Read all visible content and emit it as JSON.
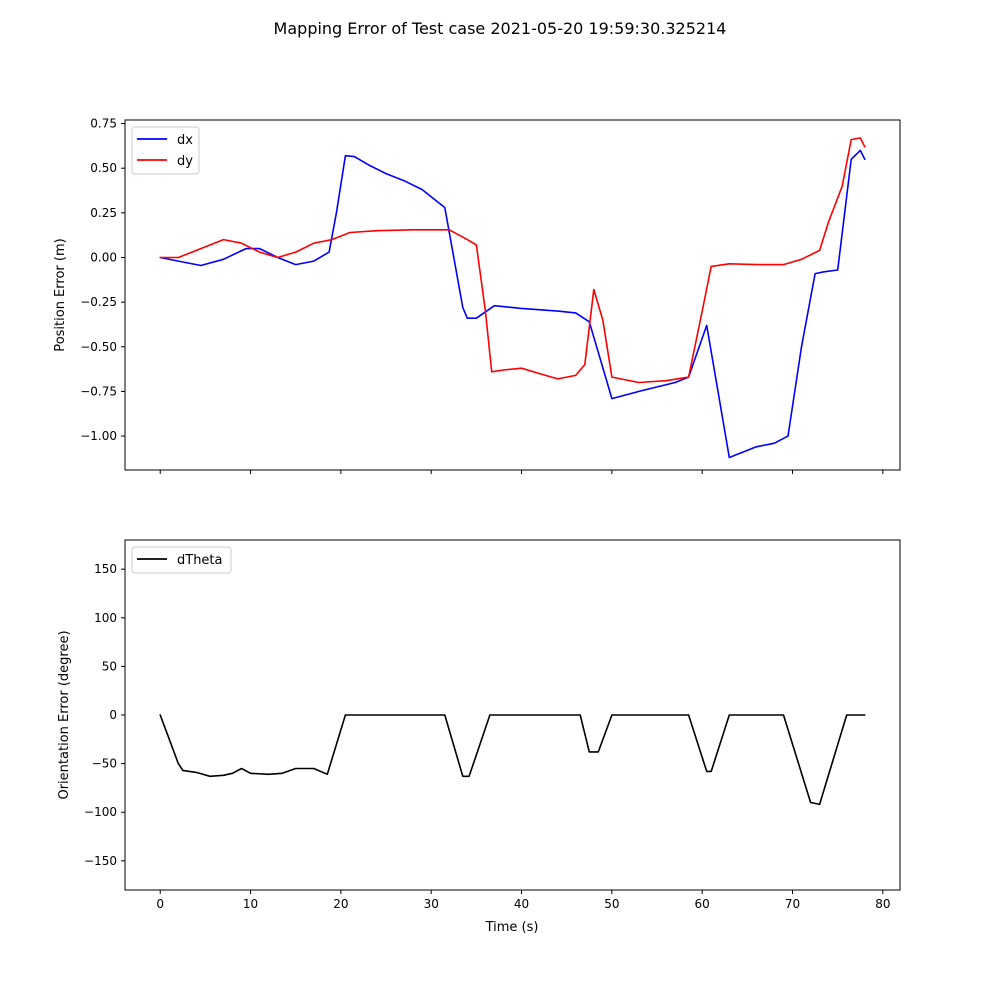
{
  "figure": {
    "title": "Mapping Error of Test case 2021-05-20 19:59:30.325214"
  },
  "chart_data": [
    {
      "type": "line",
      "xlabel": "",
      "ylabel": "Position Error (m)",
      "xlim": [
        -3.9,
        81.9
      ],
      "ylim": [
        -1.19,
        0.77
      ],
      "xticks": [
        0,
        10,
        20,
        30,
        40,
        50,
        60,
        70,
        80
      ],
      "xtick_labels_visible": false,
      "yticks": [
        -1.0,
        -0.75,
        -0.5,
        -0.25,
        0.0,
        0.25,
        0.5,
        0.75
      ],
      "ytick_labels": [
        "−1.00",
        "−0.75",
        "−0.50",
        "−0.25",
        "0.00",
        "0.25",
        "0.50",
        "0.75"
      ],
      "grid": false,
      "legend": "top-left",
      "series": [
        {
          "name": "dx",
          "color": "#0000ff",
          "points": [
            [
              0,
              0
            ],
            [
              2,
              -0.02
            ],
            [
              4.5,
              -0.045
            ],
            [
              7,
              -0.01
            ],
            [
              9.5,
              0.05
            ],
            [
              11,
              0.05
            ],
            [
              13,
              0.0
            ],
            [
              15,
              -0.04
            ],
            [
              17,
              -0.02
            ],
            [
              18.7,
              0.03
            ],
            [
              19.5,
              0.25
            ],
            [
              20.5,
              0.57
            ],
            [
              21.5,
              0.565
            ],
            [
              23,
              0.52
            ],
            [
              25,
              0.47
            ],
            [
              27,
              0.43
            ],
            [
              29,
              0.38
            ],
            [
              30.5,
              0.32
            ],
            [
              31.5,
              0.28
            ],
            [
              32.5,
              0.0
            ],
            [
              33.5,
              -0.28
            ],
            [
              34,
              -0.34
            ],
            [
              35,
              -0.34
            ],
            [
              37,
              -0.27
            ],
            [
              40,
              -0.285
            ],
            [
              44,
              -0.3
            ],
            [
              46,
              -0.31
            ],
            [
              47.5,
              -0.36
            ],
            [
              50,
              -0.79
            ],
            [
              53,
              -0.75
            ],
            [
              57,
              -0.7
            ],
            [
              58.5,
              -0.67
            ],
            [
              60.5,
              -0.38
            ],
            [
              63,
              -1.12
            ],
            [
              66,
              -1.06
            ],
            [
              68,
              -1.04
            ],
            [
              69.5,
              -1.0
            ],
            [
              71,
              -0.5
            ],
            [
              72.5,
              -0.09
            ],
            [
              73.5,
              -0.08
            ],
            [
              75,
              -0.07
            ],
            [
              76.5,
              0.55
            ],
            [
              77.5,
              0.6
            ],
            [
              78,
              0.55
            ]
          ]
        },
        {
          "name": "dy",
          "color": "#ff0000",
          "points": [
            [
              0,
              0
            ],
            [
              2,
              0.0
            ],
            [
              4,
              0.04
            ],
            [
              7,
              0.1
            ],
            [
              9,
              0.08
            ],
            [
              11,
              0.03
            ],
            [
              13,
              0.0
            ],
            [
              15,
              0.03
            ],
            [
              17,
              0.08
            ],
            [
              19,
              0.1
            ],
            [
              21,
              0.14
            ],
            [
              24,
              0.15
            ],
            [
              28,
              0.155
            ],
            [
              32,
              0.155
            ],
            [
              34,
              0.1
            ],
            [
              35,
              0.07
            ],
            [
              36,
              -0.3
            ],
            [
              36.7,
              -0.64
            ],
            [
              38,
              -0.63
            ],
            [
              40,
              -0.62
            ],
            [
              42,
              -0.65
            ],
            [
              44,
              -0.68
            ],
            [
              46,
              -0.66
            ],
            [
              47,
              -0.6
            ],
            [
              48,
              -0.18
            ],
            [
              49,
              -0.35
            ],
            [
              50,
              -0.67
            ],
            [
              53,
              -0.7
            ],
            [
              56,
              -0.69
            ],
            [
              58.5,
              -0.67
            ],
            [
              60,
              -0.3
            ],
            [
              61,
              -0.05
            ],
            [
              63,
              -0.035
            ],
            [
              66,
              -0.04
            ],
            [
              69,
              -0.04
            ],
            [
              71,
              -0.01
            ],
            [
              73,
              0.04
            ],
            [
              74,
              0.2
            ],
            [
              75.5,
              0.4
            ],
            [
              76.5,
              0.66
            ],
            [
              77.5,
              0.67
            ],
            [
              78,
              0.62
            ]
          ]
        }
      ]
    },
    {
      "type": "line",
      "xlabel": "Time (s)",
      "ylabel": "Orientation Error (degree)",
      "xlim": [
        -3.9,
        81.9
      ],
      "ylim": [
        -180,
        180
      ],
      "xticks": [
        0,
        10,
        20,
        30,
        40,
        50,
        60,
        70,
        80
      ],
      "xtick_labels": [
        "0",
        "10",
        "20",
        "30",
        "40",
        "50",
        "60",
        "70",
        "80"
      ],
      "yticks": [
        -150,
        -100,
        -50,
        0,
        50,
        100,
        150
      ],
      "ytick_labels": [
        "−150",
        "−100",
        "−50",
        "0",
        "50",
        "100",
        "150"
      ],
      "grid": false,
      "legend": "top-left",
      "series": [
        {
          "name": "dTheta",
          "color": "#000000",
          "points": [
            [
              0,
              0
            ],
            [
              1,
              -25
            ],
            [
              2,
              -50
            ],
            [
              2.5,
              -57
            ],
            [
              4,
              -59
            ],
            [
              5.5,
              -63
            ],
            [
              7,
              -62
            ],
            [
              8,
              -60
            ],
            [
              9,
              -55
            ],
            [
              10,
              -60
            ],
            [
              12,
              -61
            ],
            [
              13.5,
              -60
            ],
            [
              15,
              -55
            ],
            [
              17,
              -55
            ],
            [
              18.5,
              -61
            ],
            [
              20.5,
              0
            ],
            [
              31.5,
              0
            ],
            [
              33.5,
              -63
            ],
            [
              34.2,
              -63
            ],
            [
              36.5,
              0
            ],
            [
              46.5,
              0
            ],
            [
              47.5,
              -38
            ],
            [
              48.5,
              -38
            ],
            [
              50,
              0
            ],
            [
              58.5,
              0
            ],
            [
              60.5,
              -58
            ],
            [
              61,
              -58
            ],
            [
              63,
              0
            ],
            [
              69,
              0
            ],
            [
              72,
              -90
            ],
            [
              73,
              -92
            ],
            [
              76,
              0
            ],
            [
              78,
              0
            ]
          ]
        }
      ]
    }
  ]
}
